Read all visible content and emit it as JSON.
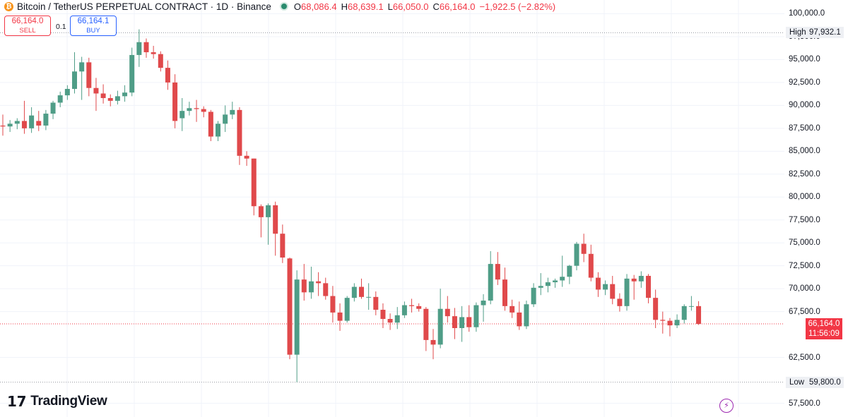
{
  "header": {
    "icon_glyph": "₿",
    "title": "Bitcoin / TetherUS PERPETUAL CONTRACT · 1D · Binance",
    "ohlc": {
      "o_label": "O",
      "o": "68,086.4",
      "h_label": "H",
      "h": "68,639.1",
      "l_label": "L",
      "l": "66,050.0",
      "c_label": "C",
      "c": "66,164.0",
      "change": "−1,922.5 (−2.82%)"
    }
  },
  "trade": {
    "sell_price": "66,164.0",
    "sell_label": "SELL",
    "buy_price": "66,164.1",
    "buy_label": "BUY",
    "quantity": "0.1"
  },
  "axis": {
    "ticks": [
      "100,000.0",
      "97,500.0",
      "95,000.0",
      "92,500.0",
      "90,000.0",
      "87,500.0",
      "85,000.0",
      "82,500.0",
      "80,000.0",
      "77,500.0",
      "75,000.0",
      "72,500.0",
      "70,000.0",
      "67,500.0",
      "62,500.0",
      "57,500.0"
    ],
    "high_label": "High",
    "high_value": "97,932.1",
    "low_label": "Low",
    "low_value": "59,800.0",
    "last_price": "66,164.0",
    "countdown": "11:56:09"
  },
  "brand": {
    "name": "TradingView"
  },
  "colors": {
    "up": "#4f9d87",
    "down": "#e0494b",
    "last_line": "#f23645"
  },
  "chart_data": {
    "type": "candlestick",
    "ylim": [
      56000,
      101500
    ],
    "high_line": 97932.1,
    "low_line": 59800.0,
    "last": 66164.0,
    "candles": [
      {
        "o": 87800,
        "h": 89000,
        "l": 86700,
        "c": 87700
      },
      {
        "o": 87700,
        "h": 88400,
        "l": 87100,
        "c": 88000
      },
      {
        "o": 88000,
        "h": 88600,
        "l": 87400,
        "c": 88300
      },
      {
        "o": 88300,
        "h": 90500,
        "l": 86900,
        "c": 87500
      },
      {
        "o": 87500,
        "h": 89800,
        "l": 87000,
        "c": 88900
      },
      {
        "o": 88300,
        "h": 89400,
        "l": 87200,
        "c": 87800
      },
      {
        "o": 87800,
        "h": 89500,
        "l": 87300,
        "c": 89100
      },
      {
        "o": 89100,
        "h": 90500,
        "l": 88500,
        "c": 90300
      },
      {
        "o": 90300,
        "h": 91500,
        "l": 89800,
        "c": 91100
      },
      {
        "o": 91100,
        "h": 92200,
        "l": 90600,
        "c": 91800
      },
      {
        "o": 91800,
        "h": 95800,
        "l": 91300,
        "c": 93700
      },
      {
        "o": 93700,
        "h": 95300,
        "l": 90600,
        "c": 94700
      },
      {
        "o": 94700,
        "h": 95200,
        "l": 91000,
        "c": 91900
      },
      {
        "o": 91900,
        "h": 93000,
        "l": 89400,
        "c": 91300
      },
      {
        "o": 91300,
        "h": 92300,
        "l": 90200,
        "c": 90800
      },
      {
        "o": 90800,
        "h": 91200,
        "l": 89900,
        "c": 90500
      },
      {
        "o": 90500,
        "h": 91600,
        "l": 90100,
        "c": 91000
      },
      {
        "o": 91000,
        "h": 92200,
        "l": 90400,
        "c": 91400
      },
      {
        "o": 91400,
        "h": 96300,
        "l": 91000,
        "c": 95500
      },
      {
        "o": 95500,
        "h": 98300,
        "l": 94200,
        "c": 96900
      },
      {
        "o": 96900,
        "h": 97300,
        "l": 95200,
        "c": 95800
      },
      {
        "o": 95800,
        "h": 96500,
        "l": 95100,
        "c": 95600
      },
      {
        "o": 95600,
        "h": 95900,
        "l": 93700,
        "c": 94100
      },
      {
        "o": 94100,
        "h": 94900,
        "l": 91700,
        "c": 92500
      },
      {
        "o": 92500,
        "h": 93400,
        "l": 87500,
        "c": 88300
      },
      {
        "o": 88600,
        "h": 90800,
        "l": 87200,
        "c": 89400
      },
      {
        "o": 89400,
        "h": 90400,
        "l": 88900,
        "c": 89700
      },
      {
        "o": 89700,
        "h": 90600,
        "l": 88200,
        "c": 89600
      },
      {
        "o": 89600,
        "h": 89900,
        "l": 88700,
        "c": 89300
      },
      {
        "o": 89300,
        "h": 89500,
        "l": 86100,
        "c": 86600
      },
      {
        "o": 86600,
        "h": 88300,
        "l": 86100,
        "c": 88000
      },
      {
        "o": 88000,
        "h": 90000,
        "l": 87100,
        "c": 89000
      },
      {
        "o": 89000,
        "h": 90400,
        "l": 88500,
        "c": 89500
      },
      {
        "o": 89500,
        "h": 89800,
        "l": 83500,
        "c": 84500
      },
      {
        "o": 84500,
        "h": 85000,
        "l": 83400,
        "c": 84200
      },
      {
        "o": 84200,
        "h": 84200,
        "l": 78000,
        "c": 79000
      },
      {
        "o": 79000,
        "h": 79200,
        "l": 75600,
        "c": 77800
      },
      {
        "o": 77800,
        "h": 79300,
        "l": 74800,
        "c": 79100
      },
      {
        "o": 79100,
        "h": 79500,
        "l": 73600,
        "c": 76000
      },
      {
        "o": 76000,
        "h": 77000,
        "l": 72800,
        "c": 73400
      },
      {
        "o": 73300,
        "h": 73400,
        "l": 62300,
        "c": 62800
      },
      {
        "o": 62800,
        "h": 72000,
        "l": 59800,
        "c": 71000
      },
      {
        "o": 71000,
        "h": 72700,
        "l": 68700,
        "c": 69600
      },
      {
        "o": 69600,
        "h": 72400,
        "l": 68900,
        "c": 70800
      },
      {
        "o": 70800,
        "h": 71800,
        "l": 69200,
        "c": 70600
      },
      {
        "o": 70600,
        "h": 71200,
        "l": 68800,
        "c": 69200
      },
      {
        "o": 69200,
        "h": 70300,
        "l": 66300,
        "c": 67400
      },
      {
        "o": 67400,
        "h": 68400,
        "l": 65400,
        "c": 66500
      },
      {
        "o": 66500,
        "h": 69200,
        "l": 66300,
        "c": 69000
      },
      {
        "o": 69000,
        "h": 70600,
        "l": 68600,
        "c": 70200
      },
      {
        "o": 70200,
        "h": 71100,
        "l": 68900,
        "c": 69100
      },
      {
        "o": 69100,
        "h": 70600,
        "l": 67700,
        "c": 69100
      },
      {
        "o": 69100,
        "h": 69700,
        "l": 67100,
        "c": 67700
      },
      {
        "o": 67700,
        "h": 68400,
        "l": 65700,
        "c": 66700
      },
      {
        "o": 66700,
        "h": 67300,
        "l": 65500,
        "c": 66300
      },
      {
        "o": 66300,
        "h": 68000,
        "l": 65600,
        "c": 67100
      },
      {
        "o": 67100,
        "h": 68600,
        "l": 66800,
        "c": 68200
      },
      {
        "o": 68200,
        "h": 68900,
        "l": 67400,
        "c": 68100
      },
      {
        "o": 68100,
        "h": 68400,
        "l": 67500,
        "c": 67800
      },
      {
        "o": 67800,
        "h": 68000,
        "l": 63200,
        "c": 64400
      },
      {
        "o": 64400,
        "h": 65600,
        "l": 62300,
        "c": 63900
      },
      {
        "o": 63900,
        "h": 70000,
        "l": 63500,
        "c": 67800
      },
      {
        "o": 67800,
        "h": 69200,
        "l": 66300,
        "c": 67000
      },
      {
        "o": 67000,
        "h": 67900,
        "l": 64500,
        "c": 65700
      },
      {
        "o": 65700,
        "h": 68100,
        "l": 64200,
        "c": 66900
      },
      {
        "o": 66900,
        "h": 68200,
        "l": 65300,
        "c": 65800
      },
      {
        "o": 65800,
        "h": 68500,
        "l": 65300,
        "c": 68200
      },
      {
        "o": 68200,
        "h": 69400,
        "l": 66400,
        "c": 68700
      },
      {
        "o": 68700,
        "h": 74100,
        "l": 68300,
        "c": 72700
      },
      {
        "o": 72700,
        "h": 74000,
        "l": 70400,
        "c": 71000
      },
      {
        "o": 71000,
        "h": 72300,
        "l": 67600,
        "c": 68100
      },
      {
        "o": 68100,
        "h": 68800,
        "l": 66800,
        "c": 67400
      },
      {
        "o": 67400,
        "h": 68600,
        "l": 65500,
        "c": 65900
      },
      {
        "o": 65900,
        "h": 68700,
        "l": 65600,
        "c": 68300
      },
      {
        "o": 68300,
        "h": 70600,
        "l": 68000,
        "c": 70100
      },
      {
        "o": 70100,
        "h": 71700,
        "l": 69300,
        "c": 70300
      },
      {
        "o": 70300,
        "h": 71200,
        "l": 69600,
        "c": 70700
      },
      {
        "o": 70700,
        "h": 71100,
        "l": 70100,
        "c": 70900
      },
      {
        "o": 70900,
        "h": 73600,
        "l": 70200,
        "c": 71300
      },
      {
        "o": 71300,
        "h": 72600,
        "l": 70500,
        "c": 72500
      },
      {
        "o": 72500,
        "h": 75100,
        "l": 72000,
        "c": 74900
      },
      {
        "o": 74900,
        "h": 76000,
        "l": 72900,
        "c": 73800
      },
      {
        "o": 73800,
        "h": 74800,
        "l": 70800,
        "c": 71200
      },
      {
        "o": 71200,
        "h": 71800,
        "l": 69100,
        "c": 69900
      },
      {
        "o": 69900,
        "h": 70900,
        "l": 69300,
        "c": 70500
      },
      {
        "o": 70500,
        "h": 71400,
        "l": 68300,
        "c": 68900
      },
      {
        "o": 68900,
        "h": 69500,
        "l": 67500,
        "c": 68100
      },
      {
        "o": 68100,
        "h": 71600,
        "l": 67600,
        "c": 71100
      },
      {
        "o": 71100,
        "h": 71500,
        "l": 68800,
        "c": 70800
      },
      {
        "o": 70800,
        "h": 71900,
        "l": 70100,
        "c": 71400
      },
      {
        "o": 71400,
        "h": 71600,
        "l": 68400,
        "c": 69000
      },
      {
        "o": 69000,
        "h": 69900,
        "l": 65700,
        "c": 66600
      },
      {
        "o": 66600,
        "h": 67500,
        "l": 65100,
        "c": 66500
      },
      {
        "o": 66500,
        "h": 66800,
        "l": 64800,
        "c": 66000
      },
      {
        "o": 66000,
        "h": 67200,
        "l": 65700,
        "c": 66600
      },
      {
        "o": 66600,
        "h": 68300,
        "l": 66200,
        "c": 68100
      },
      {
        "o": 68100,
        "h": 69200,
        "l": 67600,
        "c": 68100
      },
      {
        "o": 68100,
        "h": 68639,
        "l": 66050,
        "c": 66164
      }
    ]
  }
}
